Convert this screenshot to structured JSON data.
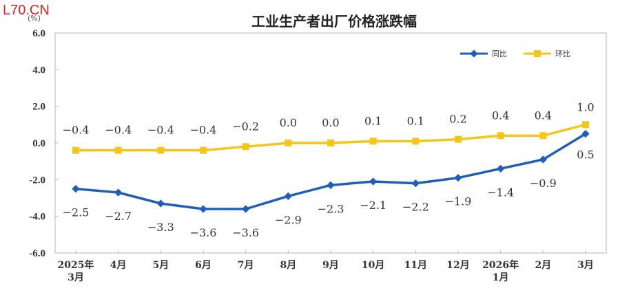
{
  "watermark": "L70.CN",
  "chart_data": {
    "type": "line",
    "title": "工业生产者出厂价格涨跌幅",
    "ylabel": "(%)",
    "ylim": [
      -6.0,
      6.0
    ],
    "yticks": [
      "6.0",
      "4.0",
      "2.0",
      "0.0",
      "-2.0",
      "-4.0",
      "-6.0"
    ],
    "categories": [
      [
        "2025年",
        "3月"
      ],
      [
        "4月"
      ],
      [
        "5月"
      ],
      [
        "6月"
      ],
      [
        "7月"
      ],
      [
        "8月"
      ],
      [
        "9月"
      ],
      [
        "10月"
      ],
      [
        "11月"
      ],
      [
        "12月"
      ],
      [
        "2026年",
        "1月"
      ],
      [
        "2月"
      ],
      [
        "3月"
      ]
    ],
    "legend_position": "top-right",
    "grid": false,
    "series": [
      {
        "name": "同比",
        "color": "#1f5fb5",
        "values": [
          -2.5,
          -2.7,
          -3.3,
          -3.6,
          -3.6,
          -2.9,
          -2.3,
          -2.1,
          -2.2,
          -1.9,
          -1.4,
          -0.9,
          0.5
        ],
        "labels": [
          "−2.5",
          "−2.7",
          "−3.3",
          "−3.6",
          "−3.6",
          "−2.9",
          "−2.3",
          "−2.1",
          "−2.2",
          "−1.9",
          "−1.4",
          "−0.9",
          "0.5"
        ]
      },
      {
        "name": "环比",
        "color": "#f5c518",
        "values": [
          -0.4,
          -0.4,
          -0.4,
          -0.4,
          -0.2,
          0.0,
          0.0,
          0.1,
          0.1,
          0.2,
          0.4,
          0.4,
          1.0
        ],
        "labels": [
          "−0.4",
          "−0.4",
          "−0.4",
          "−0.4",
          "−0.2",
          "0.0",
          "0.0",
          "0.1",
          "0.1",
          "0.2",
          "0.4",
          "0.4",
          "1.0"
        ]
      }
    ]
  }
}
